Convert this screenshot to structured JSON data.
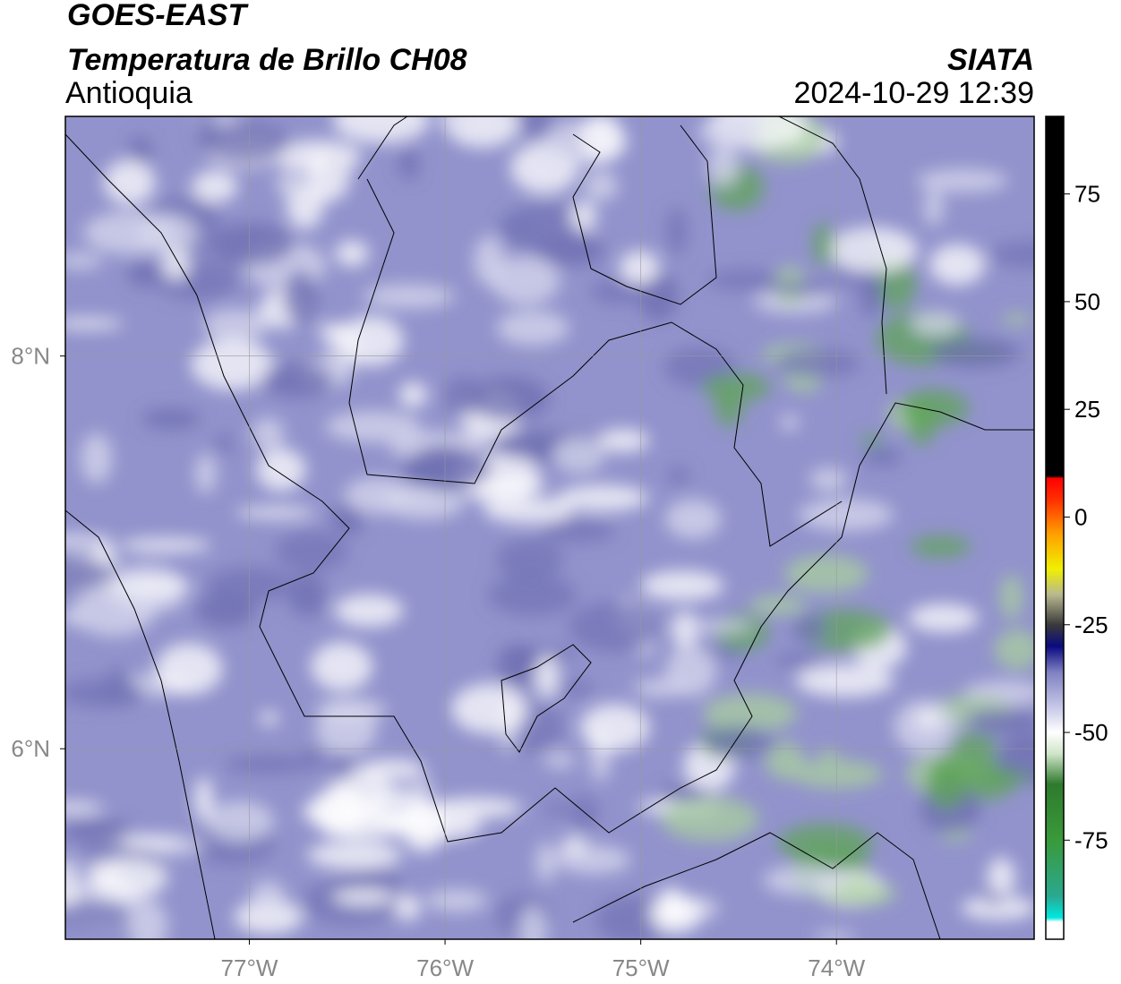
{
  "header": {
    "title": "GOES-EAST",
    "subtitle": "Temperatura de Brillo CH08",
    "region": "Antioquia",
    "source": "SIATA",
    "datetime": "2024-10-29 12:39"
  },
  "map": {
    "xlim": [
      -77.94,
      -72.99
    ],
    "ylim": [
      5.03,
      9.22
    ],
    "xticks": [
      {
        "value": -77,
        "label": "77°W"
      },
      {
        "value": -76,
        "label": "76°W"
      },
      {
        "value": -75,
        "label": "75°W"
      },
      {
        "value": -74,
        "label": "74°W"
      }
    ],
    "yticks": [
      {
        "value": 6,
        "label": "6°N"
      },
      {
        "value": 8,
        "label": "8°N"
      }
    ],
    "grid": true
  },
  "colorbar": {
    "lim": [
      -98,
      93
    ],
    "ticks": [
      -75,
      -50,
      -25,
      0,
      25,
      50,
      75
    ],
    "stops": [
      {
        "value": -98,
        "color": "#ffffff"
      },
      {
        "value": -94,
        "color": "#ffffff"
      },
      {
        "value": -93,
        "color": "#00e8e0"
      },
      {
        "value": -88,
        "color": "#2aa890"
      },
      {
        "value": -75,
        "color": "#3a9a3a"
      },
      {
        "value": -62,
        "color": "#2e7a2e"
      },
      {
        "value": -55,
        "color": "#cfe4c8"
      },
      {
        "value": -50,
        "color": "#ffffff"
      },
      {
        "value": -44,
        "color": "#c6c7e6"
      },
      {
        "value": -36,
        "color": "#7f80c2"
      },
      {
        "value": -30,
        "color": "#0a0a80"
      },
      {
        "value": -25,
        "color": "#3a3a3a"
      },
      {
        "value": -18,
        "color": "#b8b890"
      },
      {
        "value": -12,
        "color": "#f0f000"
      },
      {
        "value": -4,
        "color": "#ffa000"
      },
      {
        "value": 4,
        "color": "#ff3000"
      },
      {
        "value": 9,
        "color": "#ff0000"
      },
      {
        "value": 9.5,
        "color": "#000000"
      },
      {
        "value": 93,
        "color": "#000000"
      }
    ]
  }
}
